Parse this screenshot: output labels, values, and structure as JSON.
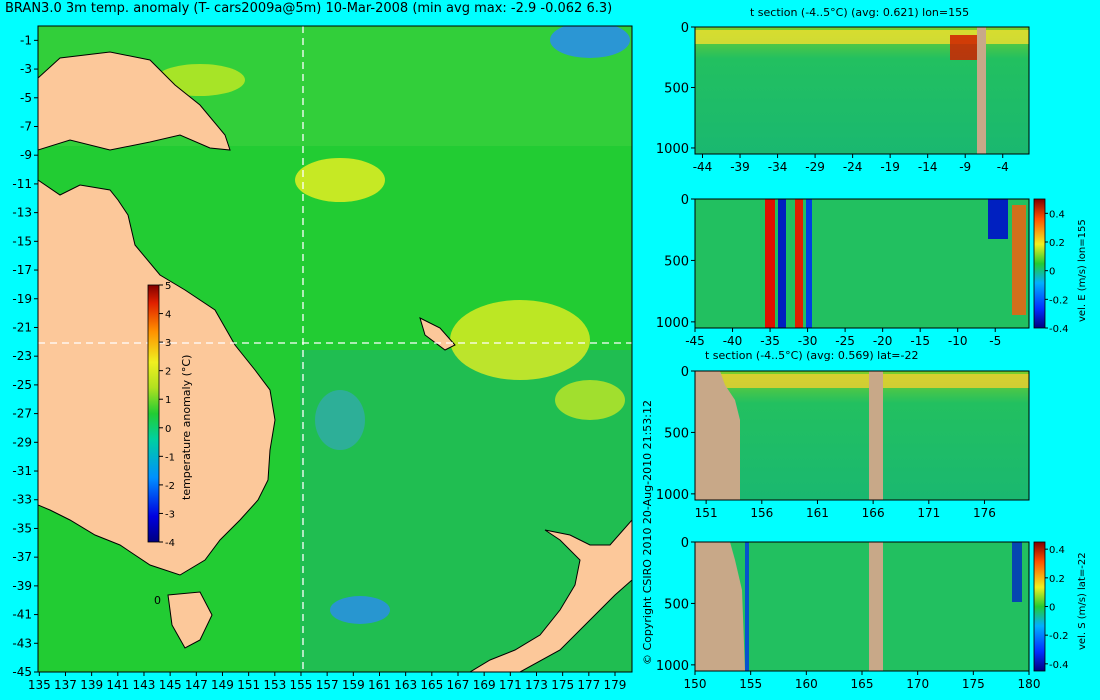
{
  "page": {
    "background": "#00ffff"
  },
  "copyright": "© Copyright CSIRO 2010   20-Aug-2010 21:53:12",
  "chart_data": [
    {
      "type": "heatmap",
      "title": "BRAN3.0 3m temp. anomaly (T- cars2009a@5m) 10-Mar-2008 (min avg max: -2.9 -0.062 6.3)",
      "x_ticks": [
        135,
        137,
        139,
        141,
        143,
        145,
        147,
        149,
        151,
        153,
        155,
        157,
        159,
        161,
        163,
        165,
        167,
        169,
        171,
        173,
        175,
        177,
        179
      ],
      "y_ticks": [
        -1,
        -3,
        -5,
        -7,
        -9,
        -11,
        -13,
        -15,
        -17,
        -19,
        -21,
        -23,
        -25,
        -27,
        -29,
        -31,
        -33,
        -35,
        -37,
        -39,
        -41,
        -43,
        -45
      ],
      "xlim": [
        134.9,
        180.3
      ],
      "ylim": [
        -45,
        0
      ],
      "crosshair": {
        "lon": 155,
        "lat": -22
      },
      "map_annotation": "0",
      "colorbar": {
        "label": "temperature anomaly (°C)",
        "range": [
          -4,
          5
        ],
        "ticks": [
          "5",
          "4",
          "3",
          "2",
          "1",
          "0",
          "-1",
          "-2",
          "-3",
          "-4"
        ]
      },
      "colors": {
        "ocean": "#22cc33",
        "land": "#fcc89a",
        "warm": "#f0f020",
        "cool": "#2a8cf0"
      }
    },
    {
      "type": "heatmap",
      "title": "t section (-4..5°C) (avg: 0.621) lon=155",
      "x_ticks": [
        "-44",
        "-39",
        "-34",
        "-29",
        "-24",
        "-19",
        "-14",
        "-9",
        "-4"
      ],
      "y_ticks": [
        "0",
        "500",
        "1000"
      ],
      "xlim": [
        -45,
        -0.5
      ],
      "ylim": [
        1050,
        0
      ]
    },
    {
      "type": "heatmap",
      "title": "",
      "x_ticks": [
        "-45",
        "-40",
        "-35",
        "-30",
        "-25",
        "-20",
        "-15",
        "-10",
        "-5"
      ],
      "y_ticks": [
        "0",
        "500",
        "1000"
      ],
      "xlim": [
        -45,
        -0.5
      ],
      "ylim": [
        1050,
        0
      ],
      "colorbar": {
        "label": "vel. E (m/s) lon=155",
        "range": [
          -0.4,
          0.5
        ],
        "ticks": [
          "0.4",
          "0.2",
          "0",
          "-0.2",
          "-0.4"
        ]
      }
    },
    {
      "type": "heatmap",
      "title": "t section (-4..5°C) (avg: 0.569) lat=-22",
      "x_ticks": [
        "151",
        "156",
        "161",
        "166",
        "171",
        "176"
      ],
      "y_ticks": [
        "0",
        "500",
        "1000"
      ],
      "xlim": [
        150,
        180
      ],
      "ylim": [
        1050,
        0
      ]
    },
    {
      "type": "heatmap",
      "title": "",
      "x_ticks": [
        "150",
        "155",
        "160",
        "165",
        "170",
        "175",
        "180"
      ],
      "y_ticks": [
        "0",
        "500",
        "1000"
      ],
      "xlim": [
        150,
        180
      ],
      "ylim": [
        1050,
        0
      ],
      "colorbar": {
        "label": "vel. S (m/s) lat=-22",
        "range": [
          -0.45,
          0.45
        ],
        "ticks": [
          "0.4",
          "0.2",
          "0",
          "-0.2",
          "-0.4"
        ]
      }
    }
  ]
}
